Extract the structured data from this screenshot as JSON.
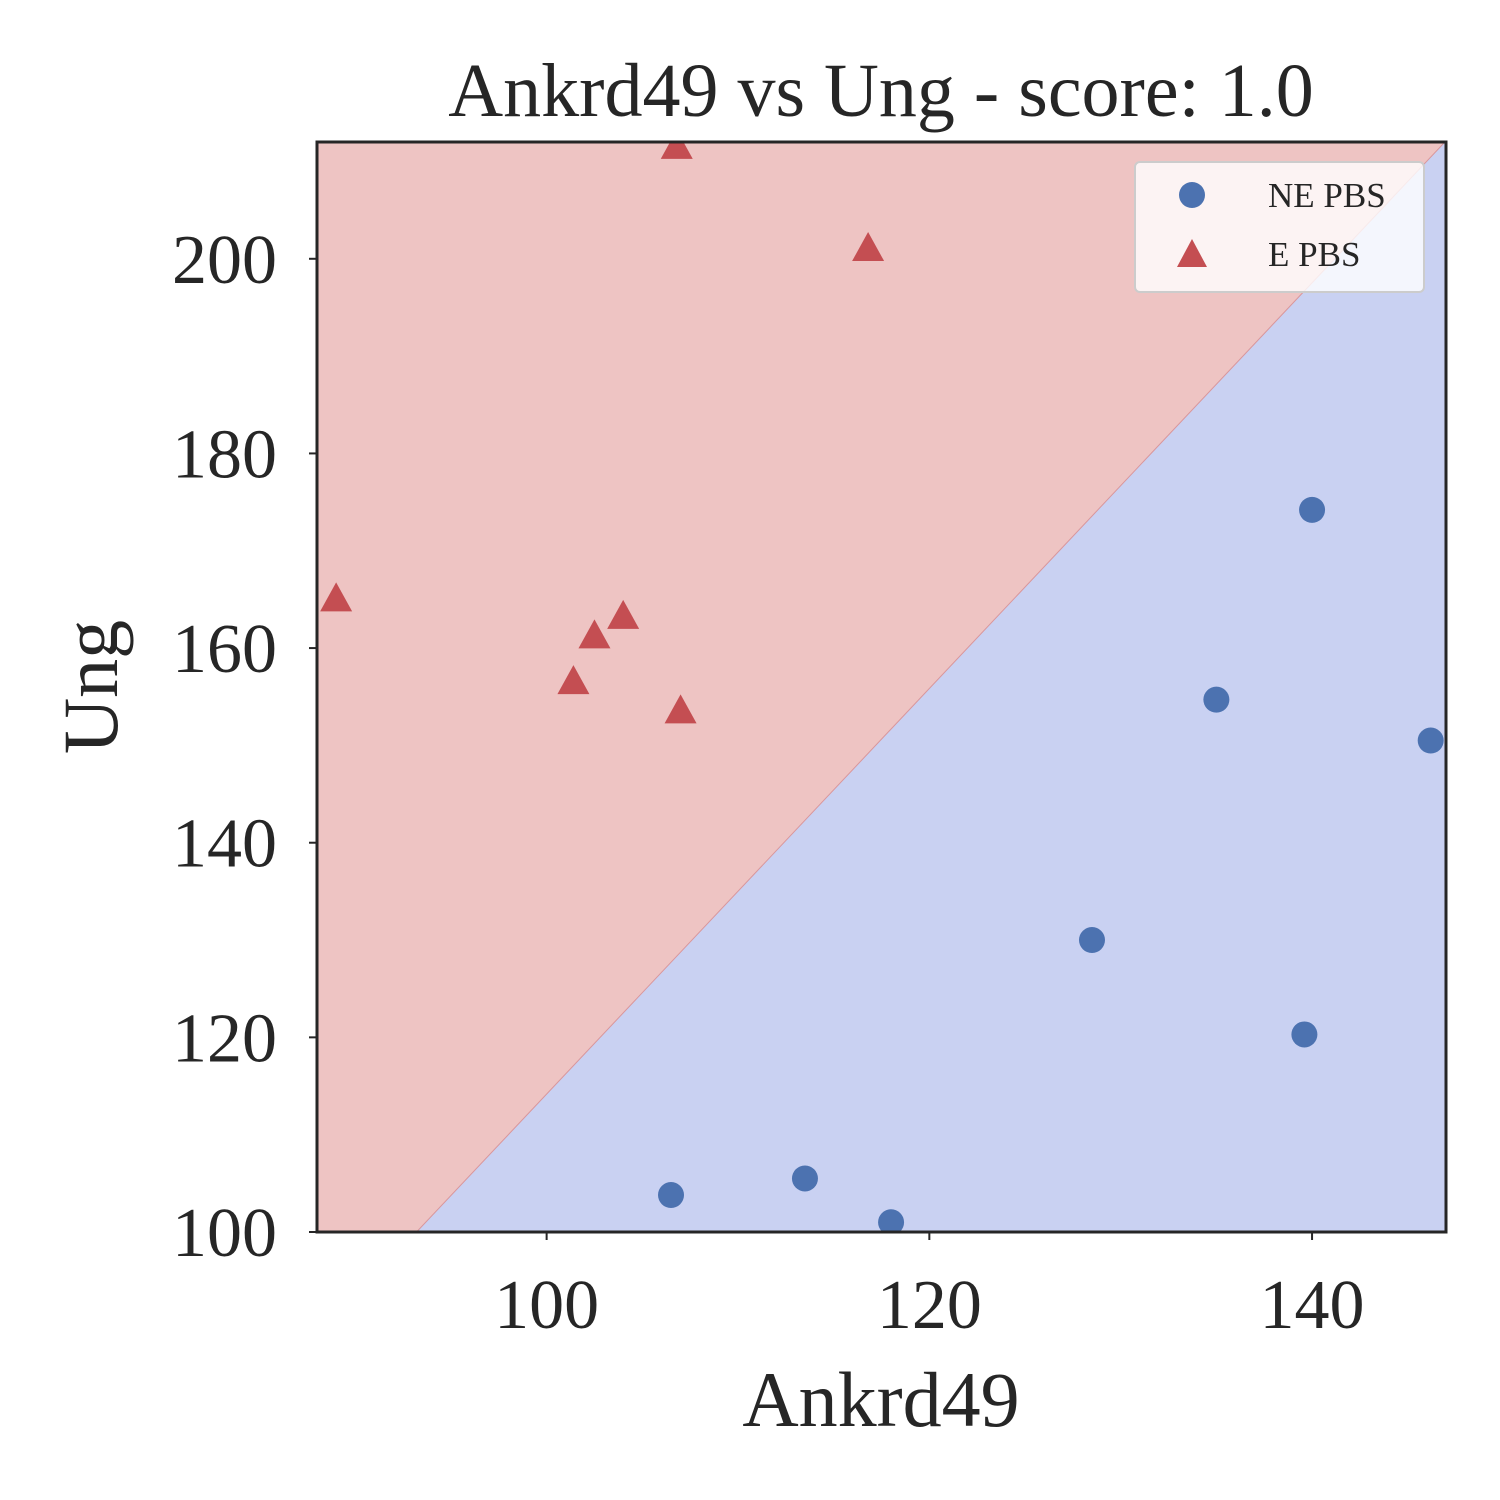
{
  "chart_data": {
    "type": "scatter",
    "title": "Ankrd49 vs Ung - score: 1.0",
    "xlabel": "Ankrd49",
    "ylabel": "Ung",
    "xlim": [
      88,
      147
    ],
    "ylim": [
      100,
      212
    ],
    "xticks": [
      100,
      120,
      140
    ],
    "yticks": [
      100,
      120,
      140,
      160,
      180,
      200
    ],
    "grid": false,
    "legend_position": "top-right",
    "decision_boundary": {
      "points": [
        [
          93.2,
          100
        ],
        [
          146.8,
          211.7
        ]
      ],
      "upper_region": "E PBS",
      "lower_region": "NE PBS",
      "colors": {
        "upper": "#eec4c3",
        "lower": "#c9d1f2"
      }
    },
    "series": [
      {
        "name": "NE PBS",
        "marker": "circle",
        "color": "#4c72b0",
        "points": [
          [
            106.5,
            103.8
          ],
          [
            113.5,
            105.5
          ],
          [
            118.0,
            101.0
          ],
          [
            128.5,
            130.0
          ],
          [
            135.0,
            154.7
          ],
          [
            139.6,
            120.3
          ],
          [
            140.0,
            174.2
          ],
          [
            146.2,
            150.5
          ]
        ]
      },
      {
        "name": "E PBS",
        "marker": "triangle",
        "color": "#c44e52",
        "points": [
          [
            89.0,
            165.0
          ],
          [
            101.4,
            156.5
          ],
          [
            102.5,
            161.2
          ],
          [
            104.0,
            163.2
          ],
          [
            107.0,
            153.5
          ],
          [
            106.8,
            211.5
          ],
          [
            116.8,
            201.0
          ]
        ]
      }
    ]
  }
}
